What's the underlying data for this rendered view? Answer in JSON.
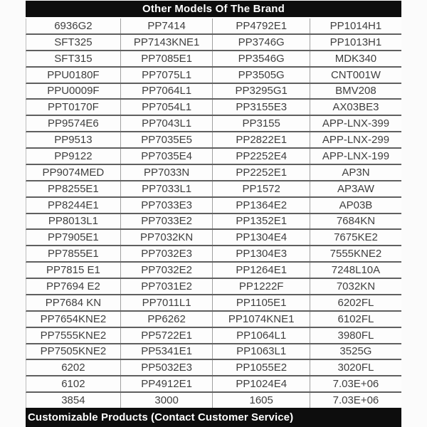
{
  "header": {
    "title": "Other Models Of The Brand"
  },
  "footer": {
    "note": "Customizable Products (Contact Customer Service)"
  },
  "colors": {
    "bar_bg": "#0d0d0d",
    "bar_text": "#ffffff",
    "cell_text": "#3f3f3f",
    "h_line": "#5f5f5f",
    "v_line": "#9f9f9f"
  },
  "table": {
    "columns": 4,
    "rows": [
      [
        "6936G2",
        "PP7414",
        "PP4792E1",
        "PP1014H1"
      ],
      [
        "SFT325",
        "PP7143KNE1",
        "PP3746G",
        "PP1013H1"
      ],
      [
        "SFT315",
        "PP7085E1",
        "PP3546G",
        "MDK340"
      ],
      [
        "PPU0180F",
        "PP7075L1",
        "PP3505G",
        "CNT001W"
      ],
      [
        "PPU0009F",
        "PP7064L1",
        "PP3295G1",
        "BMV208"
      ],
      [
        "PPT0170F",
        "PP7054L1",
        "PP3155E3",
        "AX03BE3"
      ],
      [
        "PP9574E6",
        "PP7043L1",
        "PP3155",
        "APP-LNX-399"
      ],
      [
        "PP9513",
        "PP7035E5",
        "PP2822E1",
        "APP-LNX-299"
      ],
      [
        "PP9122",
        "PP7035E4",
        "PP2252E4",
        "APP-LNX-199"
      ],
      [
        "PP9074MED",
        "PP7033N",
        "PP2252E1",
        "AP3N"
      ],
      [
        "PP8255E1",
        "PP7033L1",
        "PP1572",
        "AP3AW"
      ],
      [
        "PP8244E1",
        "PP7033E3",
        "PP1364E2",
        "AP03B"
      ],
      [
        "PP8013L1",
        "PP7033E2",
        "PP1352E1",
        "7684KN"
      ],
      [
        "PP7905E1",
        "PP7032KN",
        "PP1304E4",
        "7675KE2"
      ],
      [
        "PP7855E1",
        "PP7032E3",
        "PP1304E3",
        "7555KNE2"
      ],
      [
        "PP7815 E1",
        "PP7032E2",
        "PP1264E1",
        "7248L10A"
      ],
      [
        "PP7694 E2",
        "PP7031E2",
        "PP1222F",
        "7032KN"
      ],
      [
        "PP7684 KN",
        "PP7011L1",
        "PP1105E1",
        "6202FL"
      ],
      [
        "PP7654KNE2",
        "PP6262",
        "PP1074KNE1",
        "6102FL"
      ],
      [
        "PP7555KNE2",
        "PP5722E1",
        "PP1064L1",
        "3980FL"
      ],
      [
        "PP7505KNE2",
        "PP5341E1",
        "PP1063L1",
        "3525G"
      ],
      [
        "6202",
        "PP5032E3",
        "PP1055E2",
        "3020FL"
      ],
      [
        "6102",
        "PP4912E1",
        "PP1024E4",
        "7.03E+06"
      ],
      [
        "3854",
        "3000",
        "1605",
        "7.03E+06"
      ]
    ]
  }
}
